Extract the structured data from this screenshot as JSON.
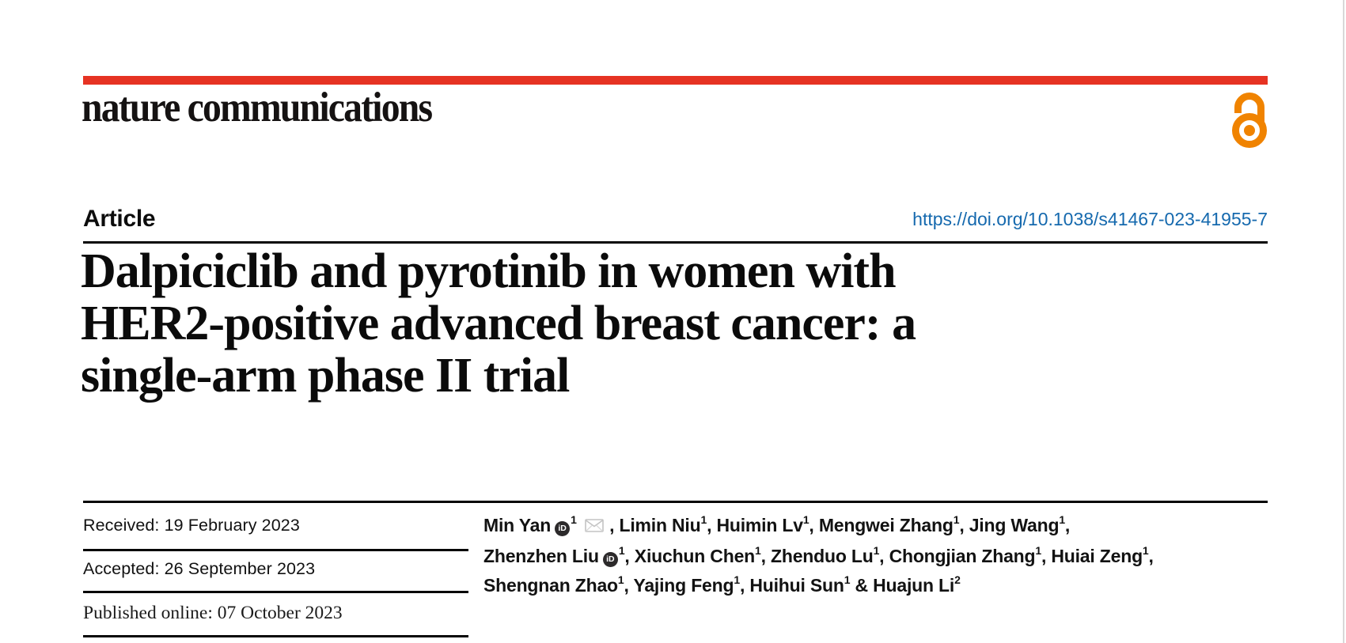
{
  "journal": {
    "logo_text": "nature communications",
    "brand_bar_color": "#e63323",
    "open_access_color": "#f08300"
  },
  "header": {
    "article_label": "Article",
    "doi_text": "https://doi.org/10.1038/s41467-023-41955-7",
    "doi_color": "#1569ae"
  },
  "title": {
    "lines": [
      "Dalpiciclib and pyrotinib in women with",
      "HER2-positive advanced breast cancer: a",
      "single-arm phase II trial"
    ]
  },
  "dates": [
    {
      "label": "Received:",
      "value": "19 February 2023"
    },
    {
      "label": "Accepted:",
      "value": "26 September 2023"
    },
    {
      "label": "Published online:",
      "value": "07 October 2023"
    }
  ],
  "authors": {
    "orcid_icon_label": "iD",
    "lines": [
      [
        {
          "name": "Min Yan",
          "orcid": true,
          "sup": "1",
          "email": true,
          "sep": ", "
        },
        {
          "name": "Limin Niu",
          "sup": "1",
          "sep": ", "
        },
        {
          "name": "Huimin Lv",
          "sup": "1",
          "sep": ", "
        },
        {
          "name": "Mengwei Zhang",
          "sup": "1",
          "sep": ", "
        },
        {
          "name": "Jing Wang",
          "sup": "1",
          "sep": ","
        }
      ],
      [
        {
          "name": "Zhenzhen Liu",
          "orcid": true,
          "sup": "1",
          "sep": ", "
        },
        {
          "name": "Xiuchun Chen",
          "sup": "1",
          "sep": ", "
        },
        {
          "name": "Zhenduo Lu",
          "sup": "1",
          "sep": ", "
        },
        {
          "name": "Chongjian Zhang",
          "sup": "1",
          "sep": ", "
        },
        {
          "name": "Huiai Zeng",
          "sup": "1",
          "sep": ","
        }
      ],
      [
        {
          "name": "Shengnan Zhao",
          "sup": "1",
          "sep": ", "
        },
        {
          "name": "Yajing Feng",
          "sup": "1",
          "sep": ", "
        },
        {
          "name": "Huihui Sun",
          "sup": "1",
          "sep": " & "
        },
        {
          "name": "Huajun Li",
          "sup": "2",
          "sep": ""
        }
      ]
    ]
  }
}
